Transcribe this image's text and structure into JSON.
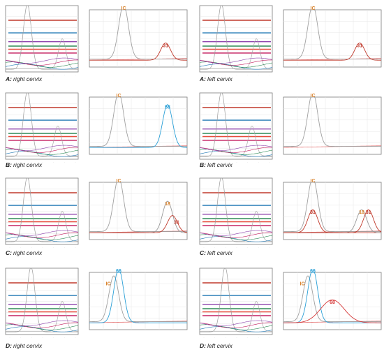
{
  "colors": {
    "ic_label": "#d9822b",
    "type_31_label": "#c0392b",
    "type_58_label": "#2a9fd6",
    "type_18_label": "#d9822b",
    "type_66_label": "#2a9fd6",
    "type_68_label": "#d63b3b",
    "ic_curve": "#a0a0a0",
    "baseline_curve": "#e57373"
  },
  "rows": [
    {
      "letter": "A",
      "left": {
        "caption": "right cervix"
      },
      "right": {
        "caption": "left cervix"
      }
    },
    {
      "letter": "B",
      "left": {
        "caption": "right cervix"
      },
      "right": {
        "caption": "left cervix"
      }
    },
    {
      "letter": "C",
      "left": {
        "caption": "right cervix"
      },
      "right": {
        "caption": "left cervix"
      }
    },
    {
      "letter": "D",
      "left": {
        "caption": "right cervix"
      },
      "right": {
        "caption": "left cervix"
      }
    }
  ],
  "chart_data": [
    {
      "type": "line",
      "panel": "A-right-cervix",
      "series": [
        {
          "label": "IC",
          "peak_x": 0.35,
          "peak_y": 0.95
        },
        {
          "label": "31",
          "peak_x": 0.78,
          "peak_y": 0.3
        }
      ]
    },
    {
      "type": "line",
      "panel": "A-left-cervix",
      "series": [
        {
          "label": "IC",
          "peak_x": 0.3,
          "peak_y": 0.95
        },
        {
          "label": "31",
          "peak_x": 0.78,
          "peak_y": 0.3
        }
      ]
    },
    {
      "type": "line",
      "panel": "B-right-cervix",
      "series": [
        {
          "label": "IC",
          "peak_x": 0.3,
          "peak_y": 0.95
        },
        {
          "label": "58",
          "peak_x": 0.8,
          "peak_y": 0.75
        }
      ]
    },
    {
      "type": "line",
      "panel": "B-left-cervix",
      "series": [
        {
          "label": "IC",
          "peak_x": 0.3,
          "peak_y": 0.95
        }
      ]
    },
    {
      "type": "line",
      "panel": "C-right-cervix",
      "series": [
        {
          "label": "IC",
          "peak_x": 0.3,
          "peak_y": 0.95
        },
        {
          "label": "18",
          "peak_x": 0.8,
          "peak_y": 0.55
        },
        {
          "label": "31",
          "peak_x": 0.85,
          "peak_y": 0.3
        }
      ]
    },
    {
      "type": "line",
      "panel": "C-left-cervix",
      "series": [
        {
          "label": "IC",
          "peak_x": 0.3,
          "peak_y": 0.95
        },
        {
          "label": "31",
          "peak_x": 0.3,
          "peak_y": 0.4
        },
        {
          "label": "18",
          "peak_x": 0.8,
          "peak_y": 0.4
        },
        {
          "label": "31",
          "peak_x": 0.87,
          "peak_y": 0.4
        }
      ]
    },
    {
      "type": "line",
      "panel": "D-right-cervix",
      "series": [
        {
          "label": "66",
          "peak_x": 0.3,
          "peak_y": 0.95
        },
        {
          "label": "IC",
          "peak_x": 0.25,
          "peak_y": 0.8
        }
      ]
    },
    {
      "type": "line",
      "panel": "D-left-cervix",
      "series": [
        {
          "label": "66",
          "peak_x": 0.3,
          "peak_y": 0.95
        },
        {
          "label": "IC",
          "peak_x": 0.25,
          "peak_y": 0.8
        },
        {
          "label": "68",
          "peak_x": 0.5,
          "peak_y": 0.4
        }
      ]
    }
  ]
}
